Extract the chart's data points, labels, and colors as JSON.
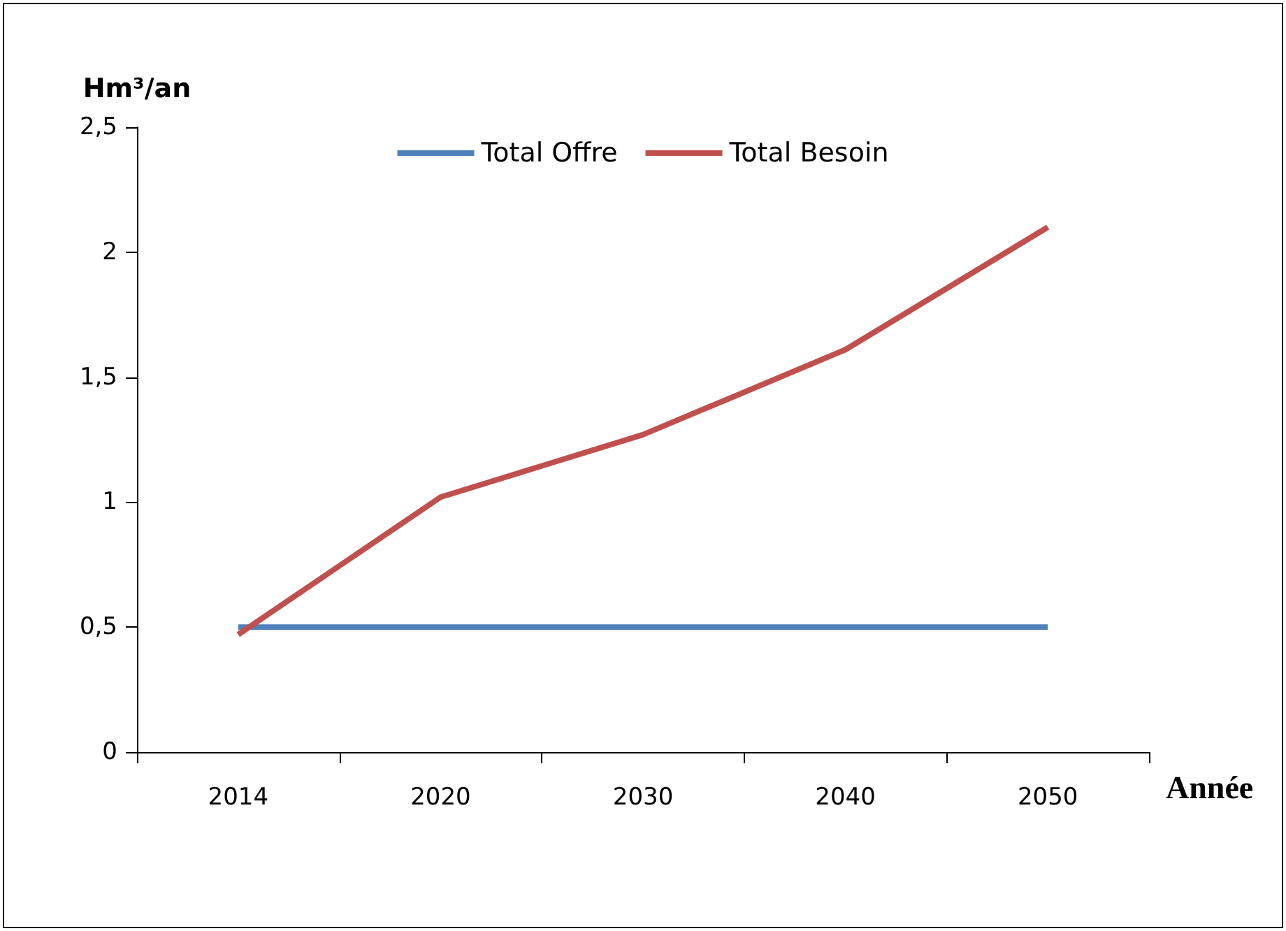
{
  "chart_data": {
    "type": "line",
    "xlabel": "Année",
    "ylabel": "Hm³/an",
    "categories": [
      "2014",
      "2020",
      "2030",
      "2040",
      "2050"
    ],
    "series": [
      {
        "name": "Total Offre",
        "color": "#4f81bd",
        "values": [
          0.5,
          0.5,
          0.5,
          0.5,
          0.5
        ]
      },
      {
        "name": "Total Besoin",
        "color": "#c0504d",
        "values": [
          0.47,
          1.02,
          1.27,
          1.61,
          2.1
        ]
      }
    ],
    "ylim": [
      0,
      2.5
    ],
    "yticks": [
      {
        "value": 0,
        "label": "0"
      },
      {
        "value": 0.5,
        "label": "0,5"
      },
      {
        "value": 1,
        "label": "1"
      },
      {
        "value": 1.5,
        "label": "1,5"
      },
      {
        "value": 2,
        "label": "2"
      },
      {
        "value": 2.5,
        "label": "2,5"
      }
    ],
    "grid": false,
    "legend": "top",
    "marker": "none",
    "line_style": "solid"
  }
}
